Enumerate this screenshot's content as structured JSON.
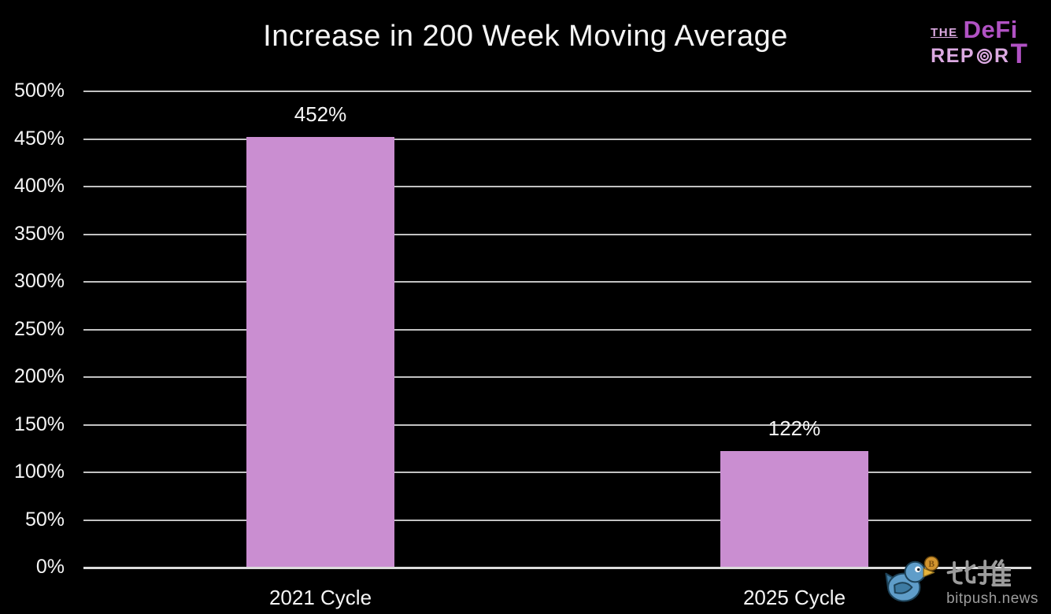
{
  "title": "Increase in 200 Week Moving Average",
  "logo": {
    "the": "THE",
    "defi": "DeFi",
    "rep": "REP",
    "r": "R",
    "t": "T",
    "target_icon": "target-rings-icon"
  },
  "watermark": {
    "brand": "比推",
    "domain": "bitpush.news",
    "bird_icon": "twitter-bird-icon",
    "coin_icon": "bitcoin-coin-icon"
  },
  "colors": {
    "background": "#000000",
    "bar": "#ca8ed1",
    "gridline": "#c2c2c2",
    "axis_line": "#dcdcdc",
    "text": "#f5f5f5",
    "logo_light": "#dcaae2",
    "logo_accent": "#b152c4",
    "watermark_gray": "#9c9c9c",
    "bird_blue": "#5f9dc9",
    "bird_wing": "#3e7ba3",
    "coin_orange": "#d2952f"
  },
  "chart_data": {
    "type": "bar",
    "title": "Increase in 200 Week Moving Average",
    "categories": [
      "2021 Cycle",
      "2025 Cycle"
    ],
    "values": [
      452,
      122
    ],
    "value_labels": [
      "452%",
      "122%"
    ],
    "xlabel": "",
    "ylabel": "",
    "ylim": [
      0,
      500
    ],
    "ytick_step": 50,
    "ytick_suffix": "%",
    "ytick_labels": [
      "0%",
      "50%",
      "100%",
      "150%",
      "200%",
      "250%",
      "300%",
      "350%",
      "400%",
      "450%",
      "500%"
    ],
    "grid": true,
    "legend": false,
    "background": "#000000",
    "bar_color": "#ca8ed1"
  }
}
